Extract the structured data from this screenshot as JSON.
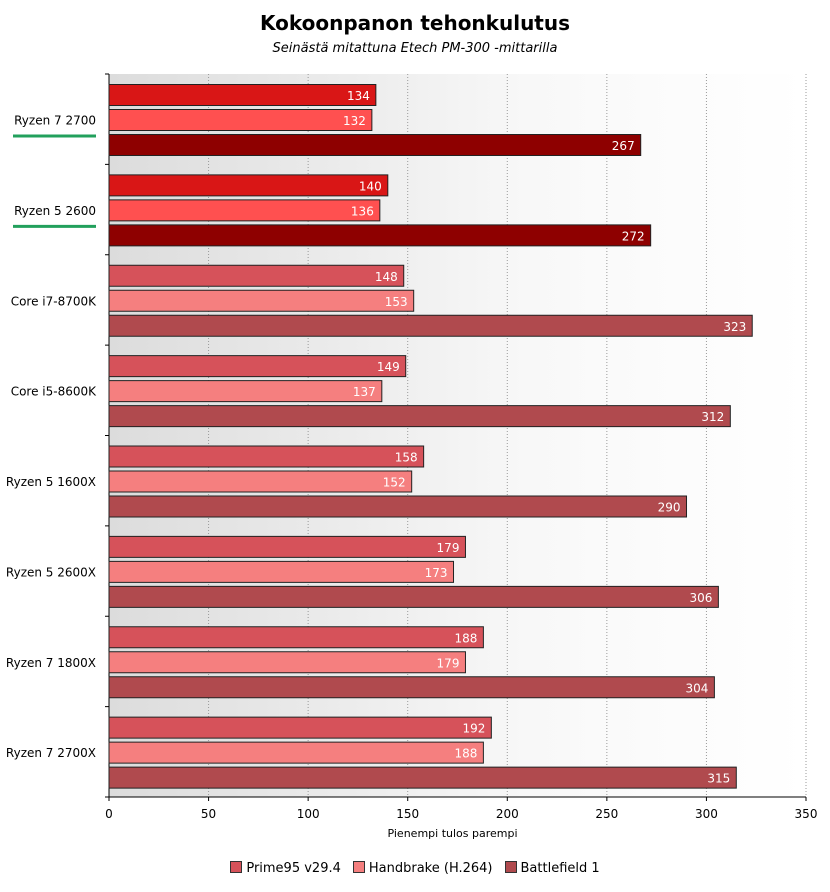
{
  "chart_data": {
    "type": "bar",
    "orientation": "horizontal",
    "title": "Kokoonpanon tehonkulutus",
    "subtitle": "Seinästä mitattuna Etech PM-300 -mittarilla",
    "xlabel": "Pienempi tulos parempi",
    "ylabel": "",
    "xlim": [
      0,
      350
    ],
    "xticks": [
      0,
      50,
      100,
      150,
      200,
      250,
      300,
      350
    ],
    "grid": "vertical dotted",
    "legend_position": "bottom",
    "categories": [
      "Ryzen 7 2700",
      "Ryzen 5 2600",
      "Core i7-8700K",
      "Core i5-8600K",
      "Ryzen 5 1600X",
      "Ryzen 5 2600X",
      "Ryzen 7 1800X",
      "Ryzen 7 2700X"
    ],
    "highlighted_categories": [
      "Ryzen 7 2700",
      "Ryzen 5 2600"
    ],
    "series": [
      {
        "name": "Prime95 v29.4",
        "values": [
          134,
          140,
          148,
          149,
          158,
          179,
          188,
          192
        ]
      },
      {
        "name": "Handbrake (H.264)",
        "values": [
          132,
          136,
          153,
          137,
          152,
          173,
          179,
          188
        ]
      },
      {
        "name": "Battlefield 1",
        "values": [
          267,
          272,
          323,
          312,
          290,
          306,
          304,
          315
        ]
      }
    ],
    "colors": {
      "series": [
        "#d6525a",
        "#f57f7f",
        "#b04a4e"
      ],
      "highlight_series": [
        "#d91616",
        "#ff5050",
        "#8e0000"
      ],
      "highlight_underline": "#22a05c"
    }
  }
}
